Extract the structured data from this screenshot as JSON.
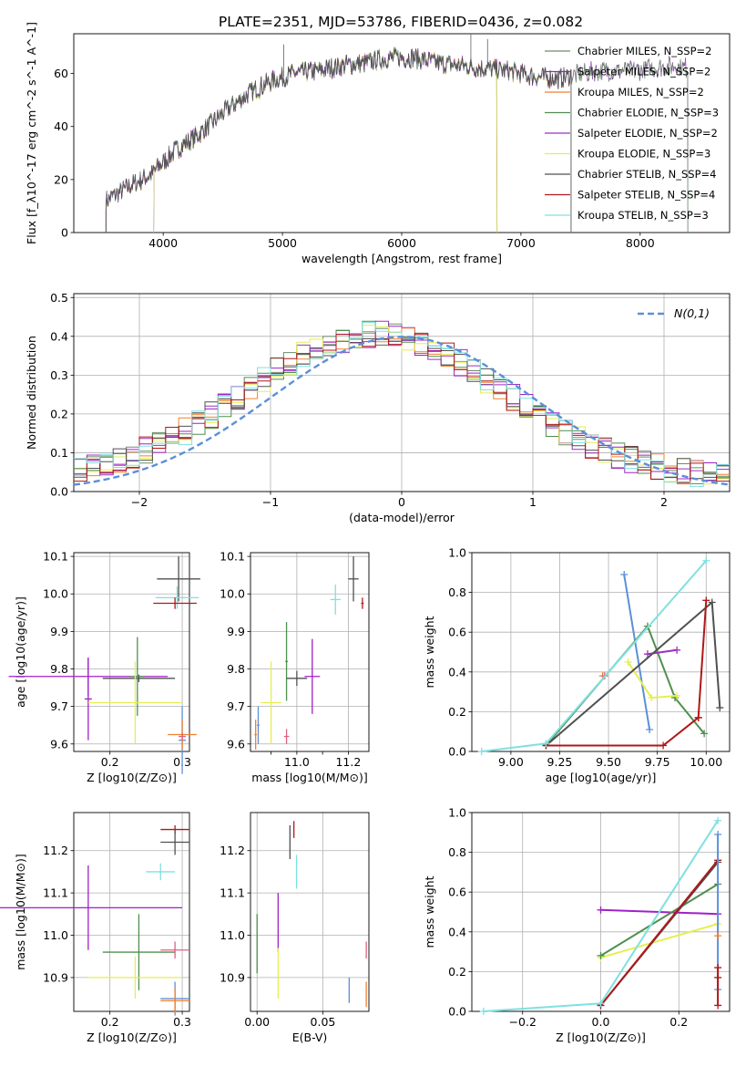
{
  "figure_title": "PLATE=2351, MJD=53786, FIBERID=0436, z=0.082",
  "model_colors": [
    "#6B8E6B",
    "#A020C8",
    "#F08030",
    "#4F8F4F",
    "#9B30C0",
    "#E6EE50",
    "#505050",
    "#B01818",
    "#80E0E0"
  ],
  "model_names": [
    "Chabrier MILES, N_SSP=2",
    "Salpeter MILES, N_SSP=2",
    "Kroupa MILES, N_SSP=2",
    "Chabrier ELODIE, N_SSP=3",
    "Salpeter ELODIE, N_SSP=2",
    "Kroupa ELODIE, N_SSP=3",
    "Chabrier STELIB, N_SSP=4",
    "Salpeter STELIB, N_SSP=4",
    "Kroupa STELIB, N_SSP=3"
  ],
  "chart_data": [
    {
      "id": "spectrum",
      "type": "line",
      "xlabel": "wavelength [Angstrom, rest frame]",
      "ylabel": "Flux [f_λ10^-17 erg cm^-2 s^-1 A^-1]",
      "xlim": [
        3250,
        8750
      ],
      "ylim": [
        0,
        75
      ],
      "xticks": [
        4000,
        5000,
        6000,
        7000,
        8000
      ],
      "yticks": [
        0,
        20,
        40,
        60
      ],
      "continuum": {
        "x": [
          3520,
          3700,
          3900,
          4100,
          4300,
          4500,
          4700,
          4900,
          5100,
          5300,
          5500,
          5700,
          5900,
          6100,
          6300,
          6500,
          6700,
          6900,
          7100,
          7300,
          7500,
          7700,
          7900,
          8100,
          8300,
          8400
        ],
        "y": [
          12,
          17,
          22,
          31,
          37,
          45,
          52,
          57,
          60,
          61,
          63,
          64,
          66,
          66,
          64,
          63,
          62,
          61,
          59,
          58,
          60,
          61,
          61,
          62,
          63,
          62
        ]
      },
      "spikes": [
        {
          "x": 6580,
          "y": 76
        },
        {
          "x": 6720,
          "y": 73
        },
        {
          "x": 5010,
          "y": 71
        }
      ],
      "model_ranges": [
        [
          3520,
          8400
        ],
        [
          3520,
          8400
        ],
        [
          3520,
          7420
        ],
        [
          3920,
          6800
        ],
        [
          3920,
          6800
        ],
        [
          3920,
          6800
        ],
        [
          3520,
          7420
        ],
        [
          3520,
          7420
        ],
        [
          3520,
          7420
        ]
      ],
      "grid": false,
      "legend": "upper-right"
    },
    {
      "id": "residuals",
      "type": "histogram",
      "xlabel": "(data-model)/error",
      "ylabel": "Normed distribution",
      "xlim": [
        -2.5,
        2.5
      ],
      "ylim": [
        0,
        0.51
      ],
      "xticks": [
        -2,
        -1,
        0,
        1,
        2
      ],
      "yticks": [
        0.0,
        0.1,
        0.2,
        0.3,
        0.4,
        0.5
      ],
      "bin_width": 0.1,
      "gaussian_label": "N(0,1)",
      "gaussian_color": "#5B8FD9",
      "grid": true,
      "legend": "upper-right"
    },
    {
      "id": "age_vs_Z",
      "type": "errorbar",
      "xlabel": "Z [log10(Z/Z⊙)]",
      "ylabel": "age [log10(age/yr)]",
      "xlim": [
        0.15,
        0.31
      ],
      "ylim": [
        9.58,
        10.11
      ],
      "xticks": [
        0.2,
        0.3
      ],
      "yticks": [
        9.6,
        9.7,
        9.8,
        9.9,
        10.0,
        10.1
      ],
      "points": [
        {
          "c": "#505050",
          "x": 0.295,
          "xe": 0.03,
          "y": 10.04,
          "ye": 0.06
        },
        {
          "c": "#80E0E0",
          "x": 0.293,
          "xe": 0.03,
          "y": 9.99,
          "ye": 0.03
        },
        {
          "c": "#B01818",
          "x": 0.29,
          "xe": 0.03,
          "y": 9.975,
          "ye": 0.015
        },
        {
          "c": "#A020C8",
          "x": 0.17,
          "xe": 0.11,
          "y": 9.78,
          "ye": 0.05
        },
        {
          "c": "#505050",
          "x": 0.24,
          "xe": 0.05,
          "y": 9.775,
          "ye": 0.01
        },
        {
          "c": "#4F8F4F",
          "x": 0.238,
          "xe": 0.01,
          "y": 9.78,
          "ye": 0.105
        },
        {
          "c": "#A020C8",
          "x": 0.17,
          "xe": 0.005,
          "y": 9.72,
          "ye": 0.11
        },
        {
          "c": "#E6EE50",
          "x": 0.235,
          "xe": 0.065,
          "y": 9.71,
          "ye": 0.11
        },
        {
          "c": "#5B8FD9",
          "x": 0.3,
          "xe": 0.005,
          "y": 9.61,
          "ye": 0.09
        },
        {
          "c": "#F08030",
          "x": 0.3,
          "xe": 0.02,
          "y": 9.625,
          "ye": 0.04
        },
        {
          "c": "#E06080",
          "x": 0.3,
          "xe": 0.005,
          "y": 9.62,
          "ye": 0.01
        }
      ],
      "grid": true
    },
    {
      "id": "age_vs_mass",
      "type": "errorbar",
      "xlabel": "mass [log10(M/M⊙)]",
      "ylabel": "",
      "xlim": [
        10.82,
        11.28
      ],
      "ylim": [
        9.58,
        10.11
      ],
      "xticks": [
        11.0,
        11.2
      ],
      "xticks_minor": [
        10.9,
        11.1
      ],
      "yticks": [
        9.6,
        9.7,
        9.8,
        9.9,
        10.0,
        10.1
      ],
      "points": [
        {
          "c": "#505050",
          "x": 11.22,
          "xe": 0.02,
          "y": 10.04,
          "ye": 0.06
        },
        {
          "c": "#80E0E0",
          "x": 11.15,
          "xe": 0.02,
          "y": 9.985,
          "ye": 0.04
        },
        {
          "c": "#B01818",
          "x": 11.255,
          "xe": 0.005,
          "y": 9.975,
          "ye": 0.015
        },
        {
          "c": "#4F8F4F",
          "x": 10.96,
          "xe": 0.005,
          "y": 9.82,
          "ye": 0.105
        },
        {
          "c": "#505050",
          "x": 11.0,
          "xe": 0.04,
          "y": 9.775,
          "ye": 0.02
        },
        {
          "c": "#A020C8",
          "x": 11.06,
          "xe": 0.03,
          "y": 9.78,
          "ye": 0.1
        },
        {
          "c": "#E6EE50",
          "x": 10.9,
          "xe": 0.04,
          "y": 9.71,
          "ye": 0.11
        },
        {
          "c": "#5B8FD9",
          "x": 10.85,
          "xe": 0.005,
          "y": 9.65,
          "ye": 0.05
        },
        {
          "c": "#F08030",
          "x": 10.84,
          "xe": 0.005,
          "y": 9.625,
          "ye": 0.04
        },
        {
          "c": "#E06080",
          "x": 10.96,
          "xe": 0.01,
          "y": 9.62,
          "ye": 0.02
        }
      ],
      "grid": true
    },
    {
      "id": "weight_vs_age",
      "type": "line",
      "xlabel": "age [log10(age/yr)]",
      "ylabel": "mass weight",
      "xlim": [
        8.8,
        10.12
      ],
      "ylim": [
        0,
        1
      ],
      "xticks": [
        9.0,
        9.25,
        9.5,
        9.75,
        10.0
      ],
      "yticks": [
        0.0,
        0.2,
        0.4,
        0.6,
        0.8,
        1.0
      ],
      "series": [
        {
          "c": "#5B8FD9",
          "x": [
            9.58,
            9.71
          ],
          "y": [
            0.89,
            0.11
          ]
        },
        {
          "c": "#F08030",
          "x": [
            9.47
          ],
          "y": [
            0.38
          ]
        },
        {
          "c": "#E06080",
          "x": [
            9.48
          ],
          "y": [
            0.38
          ]
        },
        {
          "c": "#4F8F4F",
          "x": [
            9.18,
            9.7,
            9.84,
            9.99
          ],
          "y": [
            0.03,
            0.63,
            0.27,
            0.09
          ]
        },
        {
          "c": "#9B30C0",
          "x": [
            9.7,
            9.85
          ],
          "y": [
            0.49,
            0.51
          ]
        },
        {
          "c": "#E6EE50",
          "x": [
            9.6,
            9.72,
            9.85
          ],
          "y": [
            0.45,
            0.27,
            0.28
          ]
        },
        {
          "c": "#505050",
          "x": [
            9.18,
            10.03,
            10.07
          ],
          "y": [
            0.03,
            0.75,
            0.22
          ]
        },
        {
          "c": "#B01818",
          "x": [
            9.18,
            9.78,
            9.96,
            10.0,
            9.96
          ],
          "y": [
            0.03,
            0.03,
            0.17,
            0.76,
            0.17
          ]
        },
        {
          "c": "#80E0E0",
          "x": [
            8.85,
            9.18,
            10.0
          ],
          "y": [
            0.0,
            0.04,
            0.96
          ]
        }
      ],
      "grid": true
    },
    {
      "id": "mass_vs_Z",
      "type": "errorbar",
      "xlabel": "Z [log10(Z/Z⊙)]",
      "ylabel": "mass [log10(M/M⊙)]",
      "xlim": [
        0.15,
        0.31
      ],
      "ylim": [
        10.82,
        11.29
      ],
      "xticks": [
        0.2,
        0.3
      ],
      "yticks": [
        10.9,
        11.0,
        11.1,
        11.2
      ],
      "points": [
        {
          "c": "#B01818",
          "x": 0.29,
          "xe": 0.02,
          "y": 11.25,
          "ye": 0.01
        },
        {
          "c": "#505050",
          "x": 0.29,
          "xe": 0.02,
          "y": 11.22,
          "ye": 0.03
        },
        {
          "c": "#80E0E0",
          "x": 0.27,
          "xe": 0.02,
          "y": 11.15,
          "ye": 0.02
        },
        {
          "c": "#A020C8",
          "x": 0.17,
          "xe": 0.13,
          "y": 11.065,
          "ye": 0.1
        },
        {
          "c": "#4F8F4F",
          "x": 0.24,
          "xe": 0.05,
          "y": 10.96,
          "ye": 0.09
        },
        {
          "c": "#E06080",
          "x": 0.29,
          "xe": 0.02,
          "y": 10.965,
          "ye": 0.02
        },
        {
          "c": "#E6EE50",
          "x": 0.235,
          "xe": 0.065,
          "y": 10.9,
          "ye": 0.05
        },
        {
          "c": "#5B8FD9",
          "x": 0.29,
          "xe": 0.02,
          "y": 10.85,
          "ye": 0.04
        },
        {
          "c": "#F08030",
          "x": 0.29,
          "xe": 0.02,
          "y": 10.845,
          "ye": 0.03
        }
      ],
      "grid": true
    },
    {
      "id": "mass_vs_EBV",
      "type": "errorbar",
      "xlabel": "E(B-V)",
      "ylabel": "",
      "xlim": [
        -0.005,
        0.085
      ],
      "ylim": [
        10.82,
        11.29
      ],
      "xticks": [
        0.0,
        0.05
      ],
      "yticks": [
        10.9,
        11.0,
        11.1,
        11.2
      ],
      "points": [
        {
          "c": "#505050",
          "x": 0.025,
          "xe": 0.0,
          "y": 11.22,
          "ye": 0.04
        },
        {
          "c": "#B01818",
          "x": 0.028,
          "xe": 0.0,
          "y": 11.25,
          "ye": 0.02
        },
        {
          "c": "#80E0E0",
          "x": 0.03,
          "xe": 0.0,
          "y": 11.15,
          "ye": 0.04
        },
        {
          "c": "#A020C8",
          "x": 0.016,
          "xe": 0.0,
          "y": 11.03,
          "ye": 0.07
        },
        {
          "c": "#4F8F4F",
          "x": 0.0,
          "xe": 0.0,
          "y": 10.98,
          "ye": 0.07
        },
        {
          "c": "#E6EE50",
          "x": 0.016,
          "xe": 0.0,
          "y": 10.91,
          "ye": 0.06
        },
        {
          "c": "#5B8FD9",
          "x": 0.07,
          "xe": 0.0,
          "y": 10.87,
          "ye": 0.03
        },
        {
          "c": "#F08030",
          "x": 0.083,
          "xe": 0.0,
          "y": 10.86,
          "ye": 0.03
        },
        {
          "c": "#E06080",
          "x": 0.083,
          "xe": 0.0,
          "y": 10.965,
          "ye": 0.02
        }
      ],
      "grid": true
    },
    {
      "id": "weight_vs_Z",
      "type": "line",
      "xlabel": "Z [log10(Z/Z⊙)]",
      "ylabel": "mass weight",
      "xlim": [
        -0.33,
        0.33
      ],
      "ylim": [
        0,
        1
      ],
      "xticks": [
        -0.2,
        0.0,
        0.2
      ],
      "yticks": [
        0.0,
        0.2,
        0.4,
        0.6,
        0.8,
        1.0
      ],
      "series": [
        {
          "c": "#A020C8",
          "x": [
            0.0,
            0.3
          ],
          "y": [
            0.51,
            0.49
          ]
        },
        {
          "c": "#E6EE50",
          "x": [
            0.0,
            0.3
          ],
          "y": [
            0.27,
            0.44
          ]
        },
        {
          "c": "#4F8F4F",
          "x": [
            0.0,
            0.3
          ],
          "y": [
            0.28,
            0.64
          ]
        },
        {
          "c": "#505050",
          "x": [
            0.0,
            0.3
          ],
          "y": [
            0.03,
            0.75
          ]
        },
        {
          "c": "#B01818",
          "x": [
            0.0,
            0.3
          ],
          "y": [
            0.03,
            0.76
          ]
        },
        {
          "c": "#80E0E0",
          "x": [
            -0.3,
            0.0,
            0.3
          ],
          "y": [
            0.0,
            0.04,
            0.96
          ]
        },
        {
          "c": "#5B8FD9",
          "x": [
            0.3,
            0.3
          ],
          "y": [
            0.89,
            0.11
          ]
        },
        {
          "c": "#F08030",
          "x": [
            0.3
          ],
          "y": [
            0.38
          ]
        },
        {
          "c": "#B01818",
          "x": [
            0.3,
            0.3,
            0.3
          ],
          "y": [
            0.17,
            0.22,
            0.03
          ]
        }
      ],
      "grid": true
    }
  ]
}
